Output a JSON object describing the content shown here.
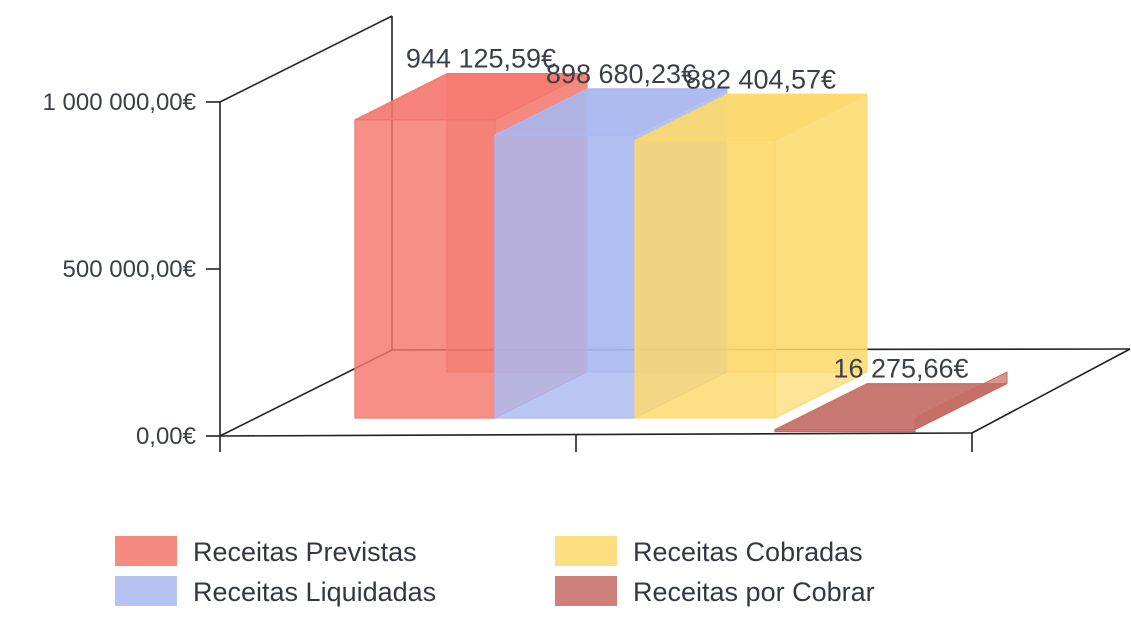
{
  "chart_data": {
    "type": "bar",
    "title": "",
    "xlabel": "",
    "ylabel": "",
    "ylim": [
      0,
      1000000
    ],
    "yticks": [
      "0,00€",
      "500 000,00€",
      "1 000 000,00€"
    ],
    "grid": false,
    "legend_position": "bottom",
    "style": "3d",
    "series": [
      {
        "name": "Receitas Previstas",
        "value": 944125.59,
        "label": "944 125,59€",
        "color": "#f4766a"
      },
      {
        "name": "Receitas Liquidadas",
        "value": 898680.23,
        "label": "898 680,23€",
        "color": "#aab8f0"
      },
      {
        "name": "Receitas Cobradas",
        "value": 882404.57,
        "label": "882 404,57€",
        "color": "#fcd86a"
      },
      {
        "name": "Receitas por Cobrar",
        "value": 16275.66,
        "label": "16 275,66€",
        "color": "#c46a63"
      }
    ]
  }
}
